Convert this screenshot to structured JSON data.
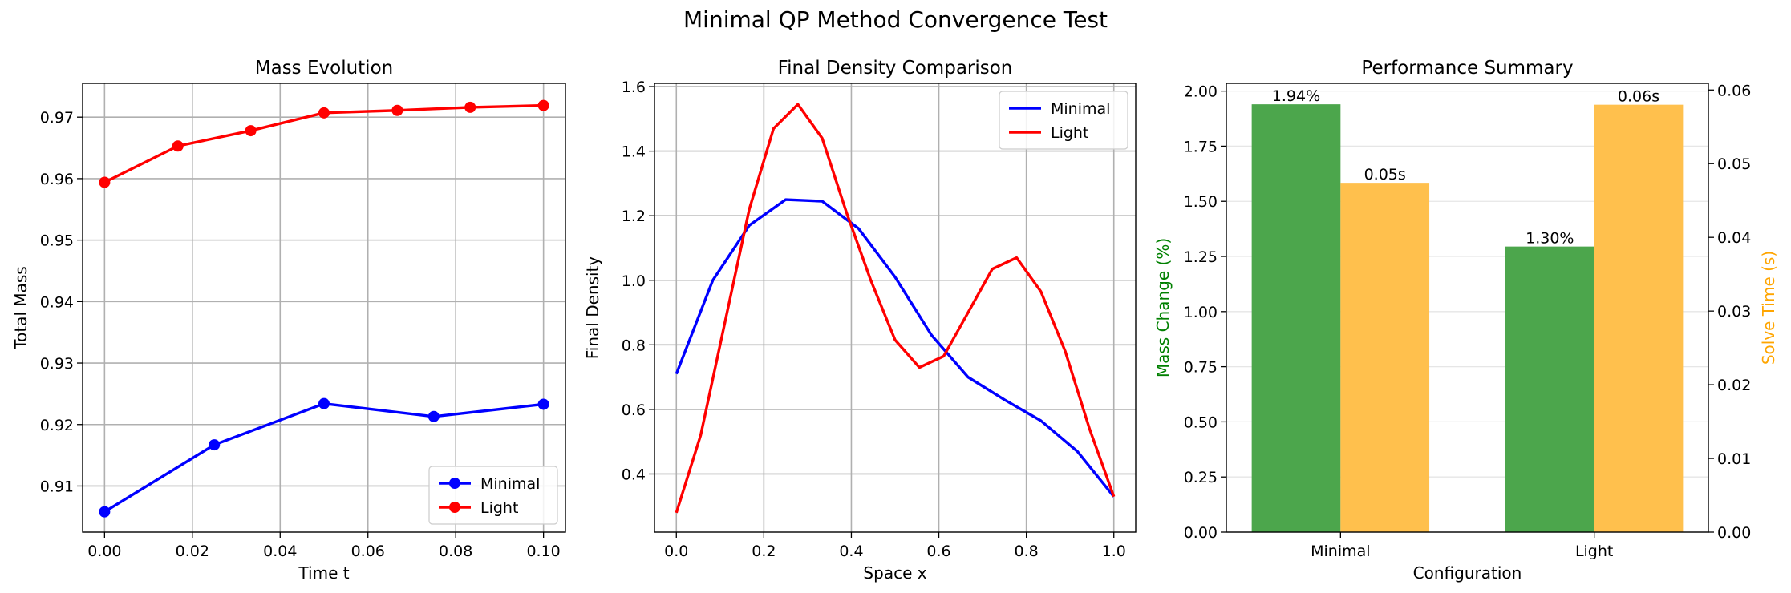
{
  "figure": {
    "title": "Minimal QP Method Convergence Test"
  },
  "chart_data": [
    {
      "type": "line",
      "title": "Mass Evolution",
      "xlabel": "Time t",
      "ylabel": "Total Mass",
      "xlim": [
        -0.005,
        0.105
      ],
      "ylim": [
        0.9025,
        0.9755
      ],
      "xticks": [
        0.0,
        0.02,
        0.04,
        0.06,
        0.08,
        0.1
      ],
      "xtick_labels": [
        "0.00",
        "0.02",
        "0.04",
        "0.06",
        "0.08",
        "0.10"
      ],
      "yticks": [
        0.91,
        0.92,
        0.93,
        0.94,
        0.95,
        0.96,
        0.97
      ],
      "ytick_labels": [
        "0.91",
        "0.92",
        "0.93",
        "0.94",
        "0.95",
        "0.96",
        "0.97"
      ],
      "grid": true,
      "legend": "lower-right",
      "series": [
        {
          "name": "Minimal",
          "color": "#0000ff",
          "marker": "circle",
          "x": [
            0.0,
            0.025,
            0.05,
            0.075,
            0.1
          ],
          "y": [
            0.9058,
            0.9167,
            0.9234,
            0.9213,
            0.9233
          ]
        },
        {
          "name": "Light",
          "color": "#ff0000",
          "marker": "circle",
          "x": [
            0.0,
            0.0167,
            0.0333,
            0.05,
            0.0667,
            0.0833,
            0.1
          ],
          "y": [
            0.9594,
            0.9653,
            0.9678,
            0.9707,
            0.9711,
            0.9716,
            0.9719
          ]
        }
      ]
    },
    {
      "type": "line",
      "title": "Final Density Comparison",
      "xlabel": "Space x",
      "ylabel": "Final Density",
      "xlim": [
        -0.05,
        1.05
      ],
      "ylim": [
        0.22,
        1.61
      ],
      "xticks": [
        0.0,
        0.2,
        0.4,
        0.6,
        0.8,
        1.0
      ],
      "xtick_labels": [
        "0.0",
        "0.2",
        "0.4",
        "0.6",
        "0.8",
        "1.0"
      ],
      "yticks": [
        0.4,
        0.6,
        0.8,
        1.0,
        1.2,
        1.4,
        1.6
      ],
      "ytick_labels": [
        "0.4",
        "0.6",
        "0.8",
        "1.0",
        "1.2",
        "1.4",
        "1.6"
      ],
      "grid": true,
      "legend": "upper-right",
      "series": [
        {
          "name": "Minimal",
          "color": "#0000ff",
          "x": [
            0.0,
            0.0833,
            0.1667,
            0.25,
            0.3333,
            0.4167,
            0.5,
            0.5833,
            0.6667,
            0.75,
            0.8333,
            0.9167,
            1.0
          ],
          "y": [
            0.71,
            1.0,
            1.17,
            1.25,
            1.245,
            1.16,
            1.01,
            0.83,
            0.7,
            0.63,
            0.565,
            0.47,
            0.33
          ]
        },
        {
          "name": "Light",
          "color": "#ff0000",
          "x": [
            0.0,
            0.0556,
            0.1111,
            0.1667,
            0.2222,
            0.2778,
            0.3333,
            0.3889,
            0.4444,
            0.5,
            0.5556,
            0.6111,
            0.6667,
            0.7222,
            0.7778,
            0.8333,
            0.8889,
            0.9444,
            1.0
          ],
          "y": [
            0.28,
            0.52,
            0.87,
            1.22,
            1.47,
            1.545,
            1.44,
            1.21,
            1.0,
            0.815,
            0.73,
            0.765,
            0.9,
            1.035,
            1.07,
            0.965,
            0.78,
            0.54,
            0.33
          ]
        }
      ]
    },
    {
      "type": "bar",
      "title": "Performance Summary",
      "xlabel": "Configuration",
      "categories": [
        "Minimal",
        "Light"
      ],
      "ylabel_left": "Mass Change (%)",
      "ylabel_right": "Solve Time (s)",
      "ylim_left": [
        0,
        2.035
      ],
      "ylim_right": [
        0,
        0.0609
      ],
      "yticks_left": [
        0,
        0.25,
        0.5,
        0.75,
        1.0,
        1.25,
        1.5,
        1.75,
        2.0
      ],
      "ytick_labels_left": [
        "0.00",
        "0.25",
        "0.50",
        "0.75",
        "1.00",
        "1.25",
        "1.50",
        "1.75",
        "2.00"
      ],
      "yticks_right": [
        0,
        0.01,
        0.02,
        0.03,
        0.04,
        0.05,
        0.06
      ],
      "ytick_labels_right": [
        "0.00",
        "0.01",
        "0.02",
        "0.03",
        "0.04",
        "0.05",
        "0.06"
      ],
      "grid": "y",
      "series": [
        {
          "name": "Mass Change (%)",
          "axis": "left",
          "color": "#4ca64c",
          "values": [
            1.94,
            1.295
          ],
          "labels": [
            "1.94%",
            "1.30%"
          ]
        },
        {
          "name": "Solve Time (s)",
          "axis": "right",
          "color": "#ffc04d",
          "values": [
            0.0474,
            0.058
          ],
          "labels": [
            "0.05s",
            "0.06s"
          ]
        }
      ],
      "ylabel_left_color": "#008000",
      "ylabel_right_color": "#ffa500"
    }
  ]
}
